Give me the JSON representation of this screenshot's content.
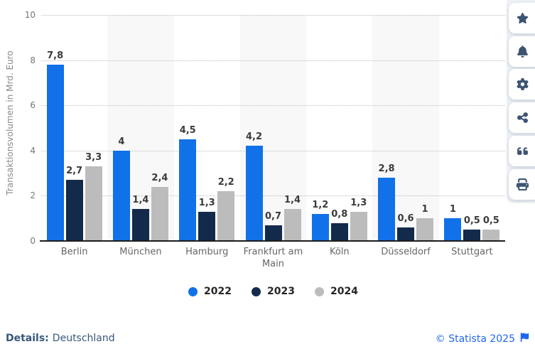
{
  "chart_data": {
    "type": "bar",
    "title": "",
    "ylabel": "Transaktionsvolumen in Mrd. Euro",
    "xlabel": "",
    "ylim": [
      0,
      10
    ],
    "ytick_step": 2,
    "grid": true,
    "legend_position": "bottom",
    "categories": [
      "Berlin",
      "München",
      "Hamburg",
      "Frankfurt am Main",
      "Köln",
      "Düsseldorf",
      "Stuttgart"
    ],
    "series": [
      {
        "name": "2022",
        "color": "#1171e8",
        "values": [
          7.8,
          4,
          4.5,
          4.2,
          1.2,
          2.8,
          1
        ],
        "display_labels": [
          "7,8",
          "4",
          "4,5",
          "4,2",
          "1,2",
          "2,8",
          "1"
        ]
      },
      {
        "name": "2023",
        "color": "#132a4b",
        "values": [
          2.7,
          1.4,
          1.3,
          0.7,
          0.8,
          0.6,
          0.5
        ],
        "display_labels": [
          "2,7",
          "1,4",
          "1,3",
          "0,7",
          "0,8",
          "0,6",
          "0,5"
        ]
      },
      {
        "name": "2024",
        "color": "#bcbcbc",
        "values": [
          3.3,
          2.4,
          2.2,
          1.4,
          1.3,
          1,
          0.5
        ],
        "display_labels": [
          "3,3",
          "2,4",
          "2,2",
          "1,4",
          "1,3",
          "1",
          "0,5"
        ]
      }
    ]
  },
  "colors": {
    "axis_line": "#1d1d1d",
    "gridline": "#bdbdbd",
    "band": "#f8f8f8",
    "tick_label": "#767676",
    "value_label": "#3b3b3b",
    "category_label": "#666666",
    "sidebar_background": "#eef1f6",
    "sidebar_icon": "#3d5472",
    "details_text": "#38577a",
    "copyright_link": "#2166f2"
  },
  "sidebar": {
    "buttons": [
      {
        "id": "favorite",
        "icon": "star-icon"
      },
      {
        "id": "notifications",
        "icon": "bell-icon"
      },
      {
        "id": "settings",
        "icon": "gear-icon"
      },
      {
        "id": "share",
        "icon": "share-icon"
      },
      {
        "id": "cite",
        "icon": "quote-icon"
      },
      {
        "id": "print",
        "icon": "printer-icon"
      }
    ]
  },
  "footer": {
    "details_label": "Details:",
    "details_value": "Deutschland",
    "copyright_text": "© Statista 2025"
  }
}
